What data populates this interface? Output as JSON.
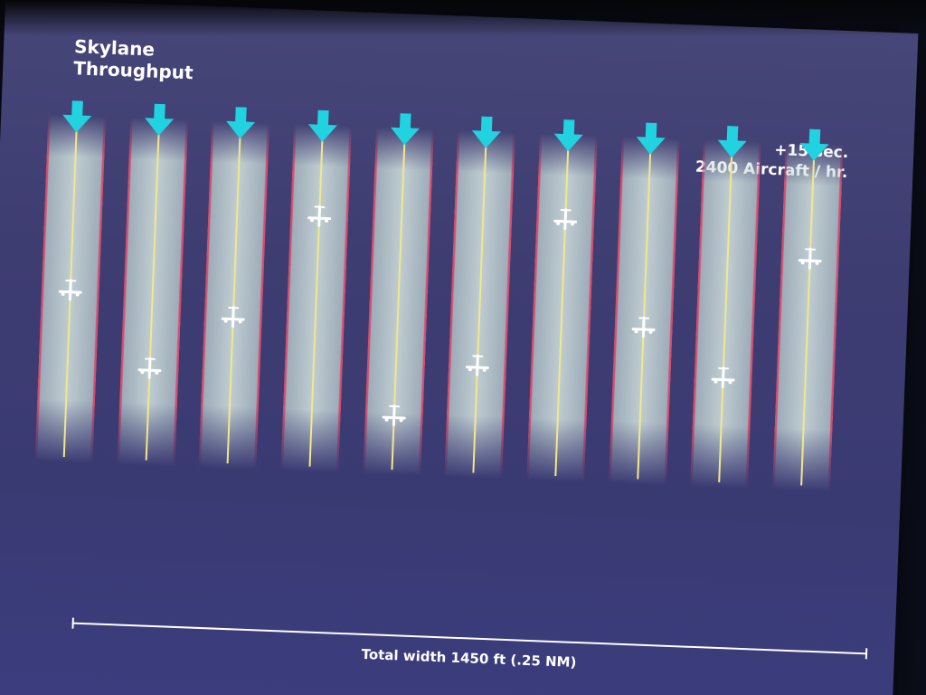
{
  "title": {
    "line1": "Skylane",
    "line2": "Throughput"
  },
  "stats": {
    "line1": "+15 sec.",
    "line2": "2400 Aircraft / hr."
  },
  "scale": {
    "label": "Total width 1450 ft (.25 NM)"
  },
  "lanes": {
    "count": 10,
    "aircraft_positions": [
      0.5,
      0.75,
      0.57,
      0.22,
      0.88,
      0.7,
      0.2,
      0.55,
      0.71,
      0.3
    ],
    "colors": {
      "arrow": "#21d3e0",
      "lane_edge": "#e6506e",
      "centerline": "#f1e88a",
      "aircraft": "#ffffff"
    }
  }
}
